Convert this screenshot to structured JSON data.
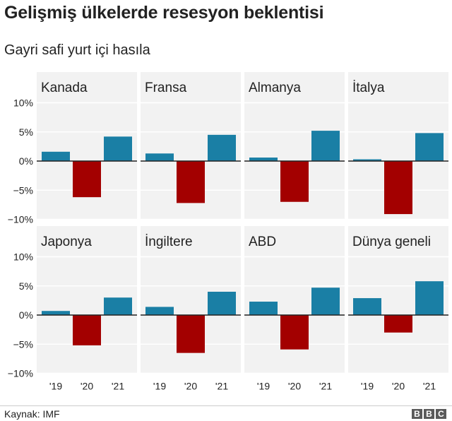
{
  "title": "Gelişmiş ülkelerde resesyon beklentisi",
  "subtitle": "Gayri safi yurt içi hasıla",
  "source": "Kaynak: IMF",
  "logo": [
    "B",
    "B",
    "C"
  ],
  "colors": {
    "positive": "#1a7fa5",
    "negative": "#a30000",
    "panel_bg": "#f2f2f2",
    "zero_line": "#222222",
    "grid": "#ffffff"
  },
  "chart_data": {
    "type": "bar",
    "categories": [
      "'19",
      "'20",
      "'21"
    ],
    "y_ticks": [
      "10%",
      "5%",
      "0%",
      "−5%",
      "−10%"
    ],
    "y_tick_values": [
      10,
      5,
      0,
      -5,
      -10
    ],
    "ylim": [
      -10,
      10
    ],
    "panels": [
      {
        "name": "Kanada",
        "values": [
          1.6,
          -6.2,
          4.2
        ]
      },
      {
        "name": "Fransa",
        "values": [
          1.3,
          -7.2,
          4.5
        ]
      },
      {
        "name": "Almanya",
        "values": [
          0.6,
          -7.0,
          5.2
        ]
      },
      {
        "name": "İtalya",
        "values": [
          0.3,
          -9.1,
          4.8
        ]
      },
      {
        "name": "Japonya",
        "values": [
          0.7,
          -5.2,
          3.0
        ]
      },
      {
        "name": "İngiltere",
        "values": [
          1.4,
          -6.5,
          4.0
        ]
      },
      {
        "name": "ABD",
        "values": [
          2.3,
          -5.9,
          4.7
        ]
      },
      {
        "name": "Dünya geneli",
        "values": [
          2.9,
          -3.0,
          5.8
        ]
      }
    ]
  }
}
